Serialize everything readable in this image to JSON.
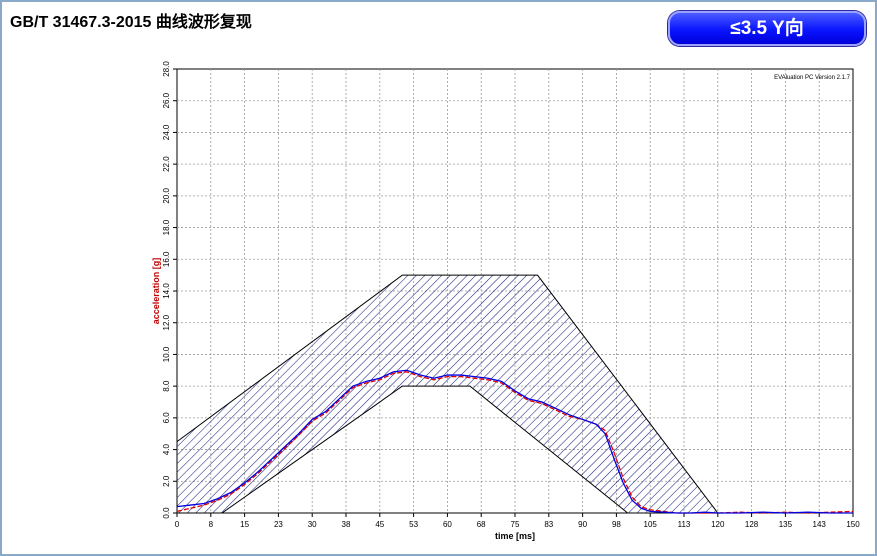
{
  "header": {
    "title": "GB/T 31467.3-2015 曲线波形复现",
    "badge": "≤3.5 Y向"
  },
  "chart_data": {
    "type": "line",
    "software_note": "EVAluation PC Version 2.1.7",
    "xlabel": "time [ms]",
    "ylabel": "acceleration [g]",
    "xlim": [
      0,
      150
    ],
    "ylim": [
      0,
      28
    ],
    "x_ticks": [
      "0",
      "8",
      "15",
      "23",
      "30",
      "38",
      "45",
      "53",
      "60",
      "68",
      "75",
      "83",
      "90",
      "98",
      "105",
      "113",
      "120",
      "128",
      "135",
      "143",
      "150"
    ],
    "y_ticks": [
      "0.0",
      "2.0",
      "4.0",
      "6.0",
      "8.0",
      "10.0",
      "12.0",
      "14.0",
      "16.0",
      "18.0",
      "20.0",
      "22.0",
      "24.0",
      "26.0",
      "28.0"
    ],
    "grid": true,
    "colors": {
      "upper_limit": "#000000",
      "lower_limit": "#000000",
      "hatch": "#1a237e",
      "series_red": "#e00000",
      "series_blue": "#0000e0"
    },
    "upper_limit": [
      [
        0,
        4.5
      ],
      [
        50,
        15
      ],
      [
        80,
        15
      ],
      [
        120,
        0
      ]
    ],
    "lower_limit": [
      [
        0,
        0
      ],
      [
        10,
        0
      ],
      [
        50,
        8
      ],
      [
        65,
        8
      ],
      [
        100,
        0
      ]
    ],
    "series": [
      {
        "color": "#e00000",
        "x": [
          0,
          3,
          6,
          9,
          12,
          15,
          18,
          21,
          24,
          27,
          30,
          33,
          36,
          39,
          42,
          45,
          48,
          51,
          54,
          57,
          60,
          63,
          66,
          69,
          72,
          75,
          78,
          81,
          84,
          87,
          90,
          93,
          95,
          97,
          99,
          101,
          103,
          105,
          108,
          111,
          114,
          117,
          120,
          125,
          130,
          135,
          140,
          145,
          150
        ],
        "y": [
          0.1,
          0.3,
          0.5,
          0.8,
          1.2,
          1.8,
          2.5,
          3.3,
          4.1,
          4.9,
          5.8,
          6.3,
          7.1,
          7.9,
          8.2,
          8.4,
          8.8,
          8.9,
          8.6,
          8.4,
          8.6,
          8.6,
          8.5,
          8.4,
          8.2,
          7.6,
          7.1,
          6.9,
          6.5,
          6.1,
          5.9,
          5.6,
          5.2,
          3.8,
          2.2,
          1.0,
          0.4,
          0.2,
          0.1,
          0.0,
          0.0,
          0.0,
          0.0,
          0.05,
          0.0,
          0.05,
          0.0,
          0.05,
          0.1
        ]
      },
      {
        "color": "#0000e0",
        "x": [
          0,
          3,
          6,
          9,
          12,
          15,
          18,
          21,
          24,
          27,
          30,
          33,
          36,
          39,
          42,
          45,
          48,
          51,
          54,
          57,
          60,
          63,
          66,
          69,
          72,
          75,
          78,
          81,
          84,
          87,
          90,
          93,
          95,
          97,
          99,
          101,
          103,
          105,
          108,
          111,
          114,
          117,
          120,
          125,
          130,
          135,
          140,
          145,
          150
        ],
        "y": [
          0.4,
          0.5,
          0.6,
          0.9,
          1.3,
          1.9,
          2.6,
          3.4,
          4.2,
          5.0,
          5.9,
          6.4,
          7.2,
          8.0,
          8.3,
          8.5,
          8.9,
          9.0,
          8.7,
          8.5,
          8.7,
          8.7,
          8.6,
          8.5,
          8.3,
          7.7,
          7.2,
          7.0,
          6.6,
          6.2,
          5.9,
          5.6,
          5.0,
          3.4,
          1.9,
          0.8,
          0.3,
          0.1,
          0.05,
          0.0,
          0.0,
          0.05,
          0.0,
          0.0,
          0.05,
          0.0,
          0.05,
          0.0,
          0.0
        ]
      }
    ]
  }
}
